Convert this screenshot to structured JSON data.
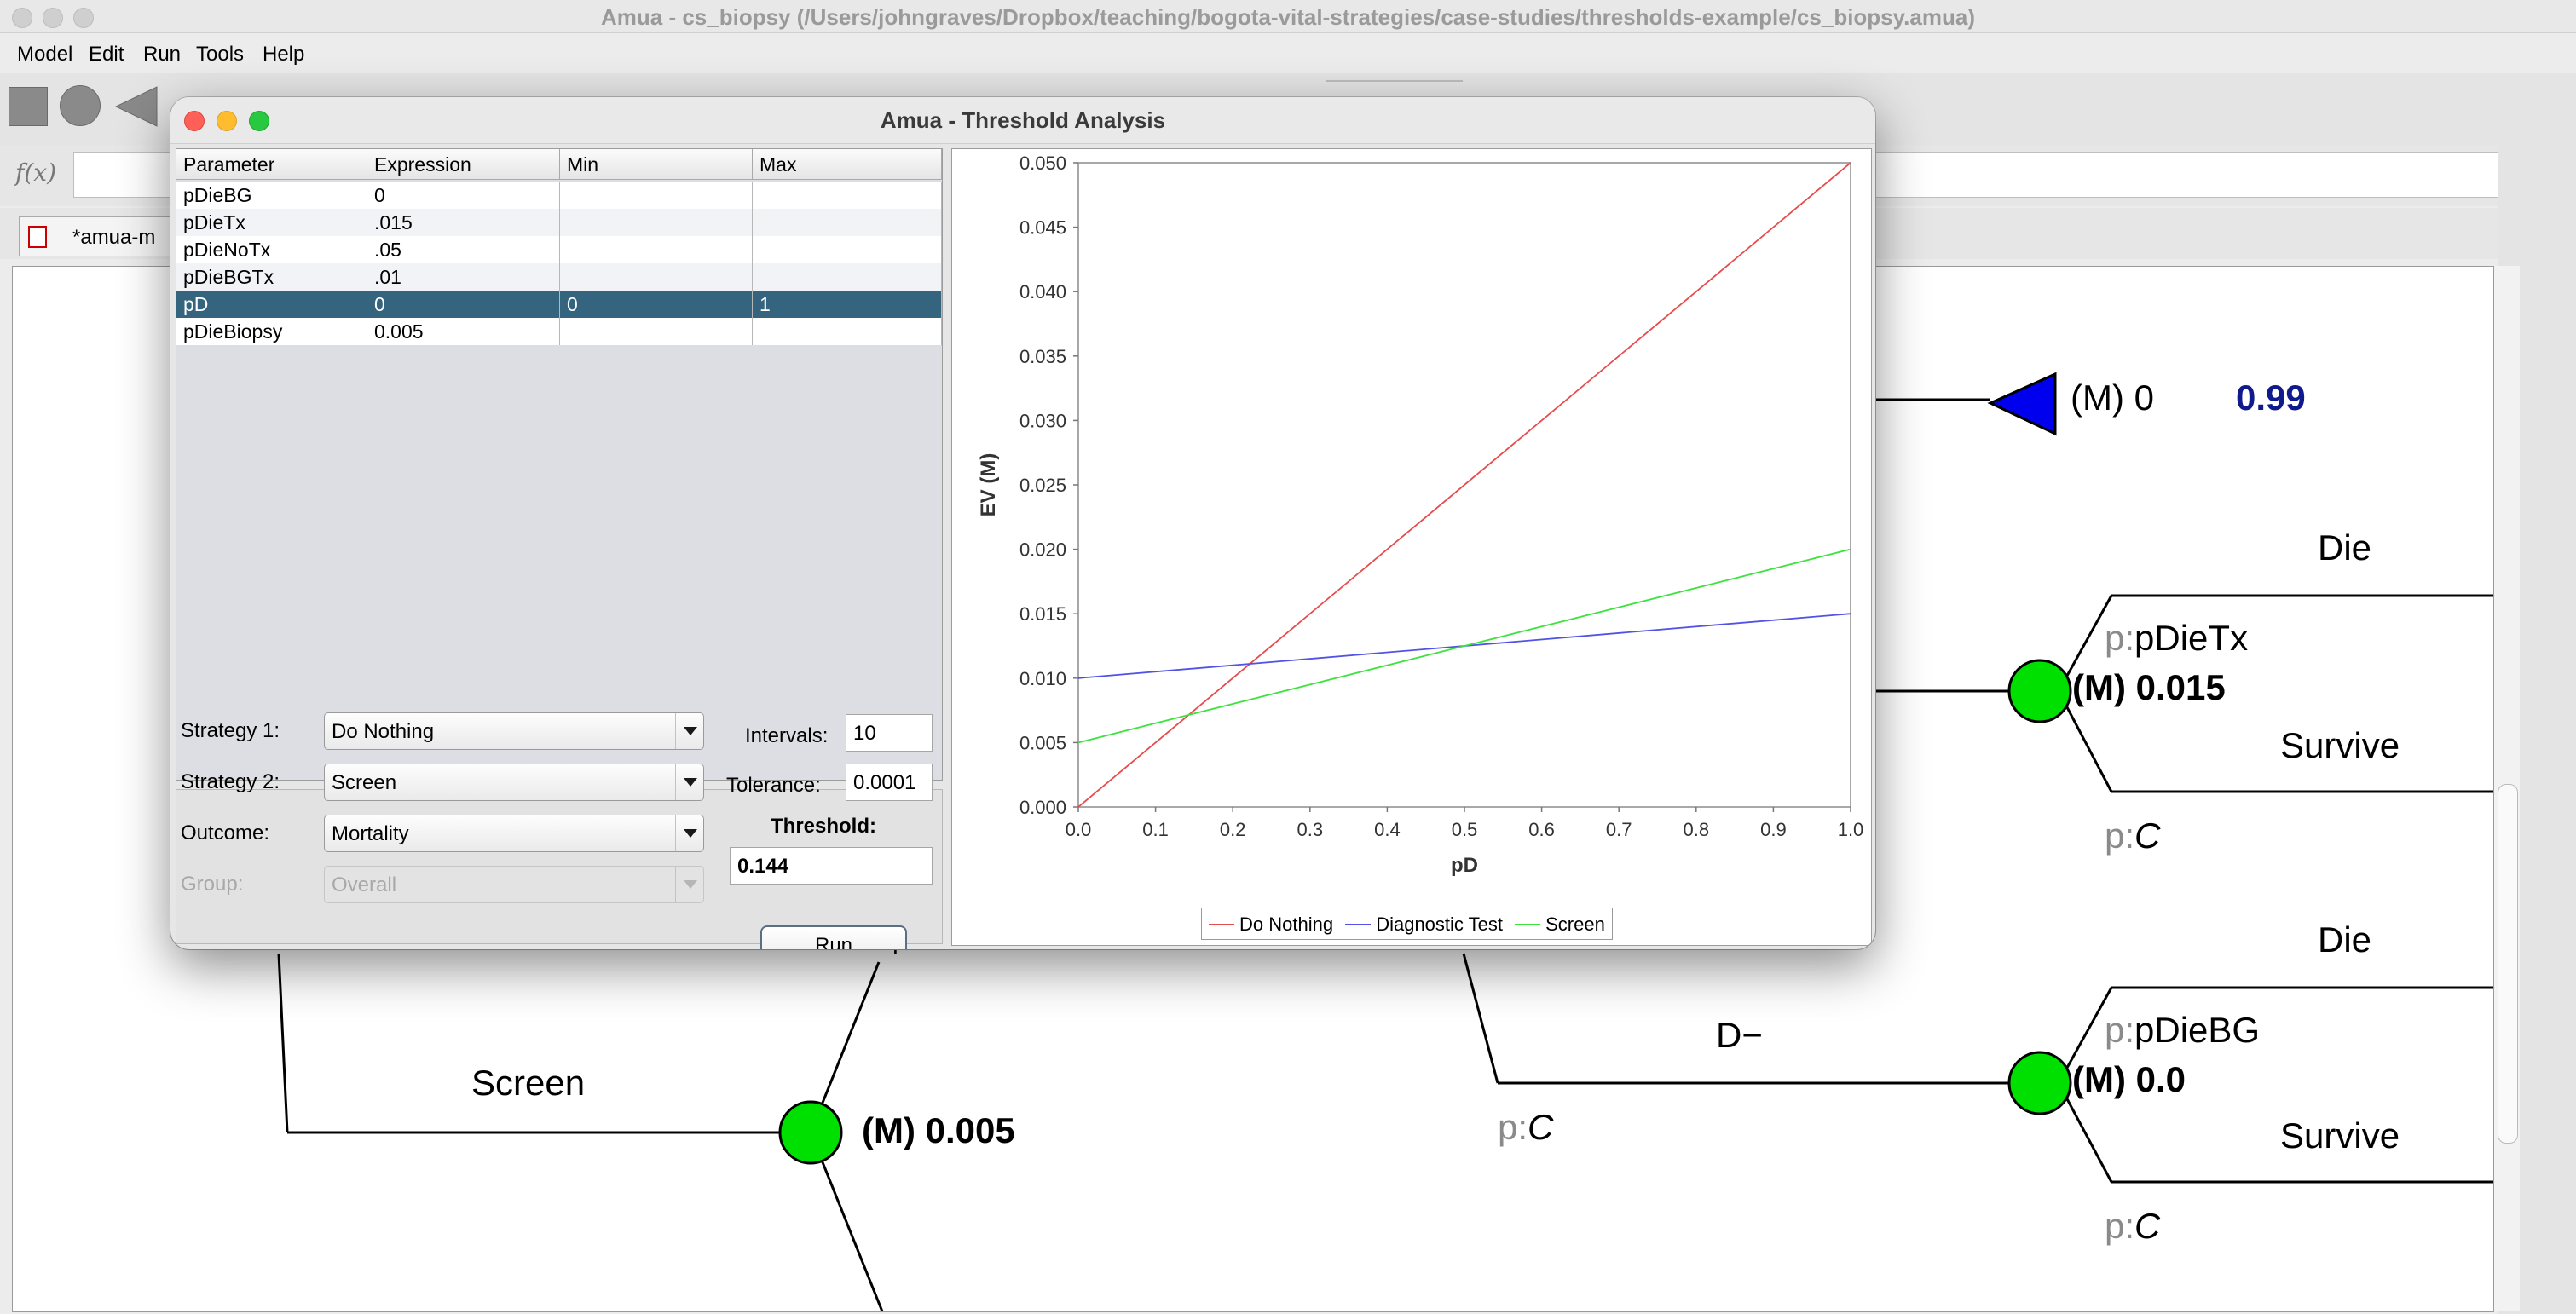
{
  "window": {
    "title": "Amua - cs_biopsy (/Users/johngraves/Dropbox/teaching/bogota-vital-strategies/case-studies/thresholds-example/cs_biopsy.amua)"
  },
  "menu": {
    "items": [
      "Model",
      "Edit",
      "Run",
      "Tools",
      "Help"
    ]
  },
  "formula": {
    "label": "f(x)",
    "value": ""
  },
  "tab": {
    "label": "*amua-m"
  },
  "tree": {
    "terminal_label": "(M) 0",
    "terminal_prob": "0.99",
    "upper_die": "Die",
    "upper_prob_prefix": "p:",
    "upper_prob": "pDieTx",
    "upper_value": "(M) 0.015",
    "upper_survive": "Survive",
    "upper_comp_prefix": "p:",
    "upper_comp": "C",
    "lower_die": "Die",
    "lower_prob_prefix": "p:",
    "lower_prob": "pDieBG",
    "lower_value": "(M) 0.0",
    "lower_survive": "Survive",
    "lower_comp_prefix": "p:",
    "lower_comp": "C",
    "dminus": "D−",
    "dminus_prob_prefix": "p:",
    "dminus_prob": "C",
    "screen_label": "Screen",
    "screen_value": "(M) 0.005",
    "partial_glyph": "r",
    "colors": {
      "chance_node": "#00e000",
      "terminal_node": "#0000ee",
      "prob_highlight": "#0f1a8c"
    }
  },
  "dialog": {
    "title": "Amua - Threshold Analysis",
    "table": {
      "headers": [
        "Parameter",
        "Expression",
        "Min",
        "Max"
      ],
      "rows": [
        {
          "parameter": "pDieBG",
          "expression": "0",
          "min": "",
          "max": ""
        },
        {
          "parameter": "pDieTx",
          "expression": ".015",
          "min": "",
          "max": ""
        },
        {
          "parameter": "pDieNoTx",
          "expression": ".05",
          "min": "",
          "max": ""
        },
        {
          "parameter": "pDieBGTx",
          "expression": ".01",
          "min": "",
          "max": ""
        },
        {
          "parameter": "pD",
          "expression": "0",
          "min": "0",
          "max": "1"
        },
        {
          "parameter": "pDieBiopsy",
          "expression": "0.005",
          "min": "",
          "max": ""
        }
      ],
      "selected_row": 4
    },
    "controls": {
      "strategy1_label": "Strategy 1:",
      "strategy1_value": "Do Nothing",
      "strategy2_label": "Strategy 2:",
      "strategy2_value": "Screen",
      "outcome_label": "Outcome:",
      "outcome_value": "Mortality",
      "group_label": "Group:",
      "group_value": "Overall",
      "intervals_label": "Intervals:",
      "intervals_value": "10",
      "tolerance_label": "Tolerance:",
      "tolerance_value": "0.0001",
      "threshold_label": "Threshold:",
      "threshold_value": "0.144",
      "run_label": "Run"
    }
  },
  "chart_data": {
    "type": "line",
    "xlabel": "pD",
    "ylabel": "EV (M)",
    "xlim": [
      0.0,
      1.0
    ],
    "ylim": [
      0.0,
      0.05
    ],
    "x_ticks": [
      "0.0",
      "0.1",
      "0.2",
      "0.3",
      "0.4",
      "0.5",
      "0.6",
      "0.7",
      "0.8",
      "0.9",
      "1.0"
    ],
    "y_ticks": [
      "0.000",
      "0.005",
      "0.010",
      "0.015",
      "0.020",
      "0.025",
      "0.030",
      "0.035",
      "0.040",
      "0.045",
      "0.050"
    ],
    "legend_position": "bottom",
    "grid": false,
    "series": [
      {
        "name": "Do Nothing",
        "color": "#e84b4b",
        "x": [
          0.0,
          1.0
        ],
        "y": [
          0.0,
          0.05
        ]
      },
      {
        "name": "Diagnostic Test",
        "color": "#5252e6",
        "x": [
          0.0,
          1.0
        ],
        "y": [
          0.01,
          0.015
        ]
      },
      {
        "name": "Screen",
        "color": "#3ee23e",
        "x": [
          0.0,
          1.0
        ],
        "y": [
          0.005,
          0.02
        ]
      }
    ]
  }
}
